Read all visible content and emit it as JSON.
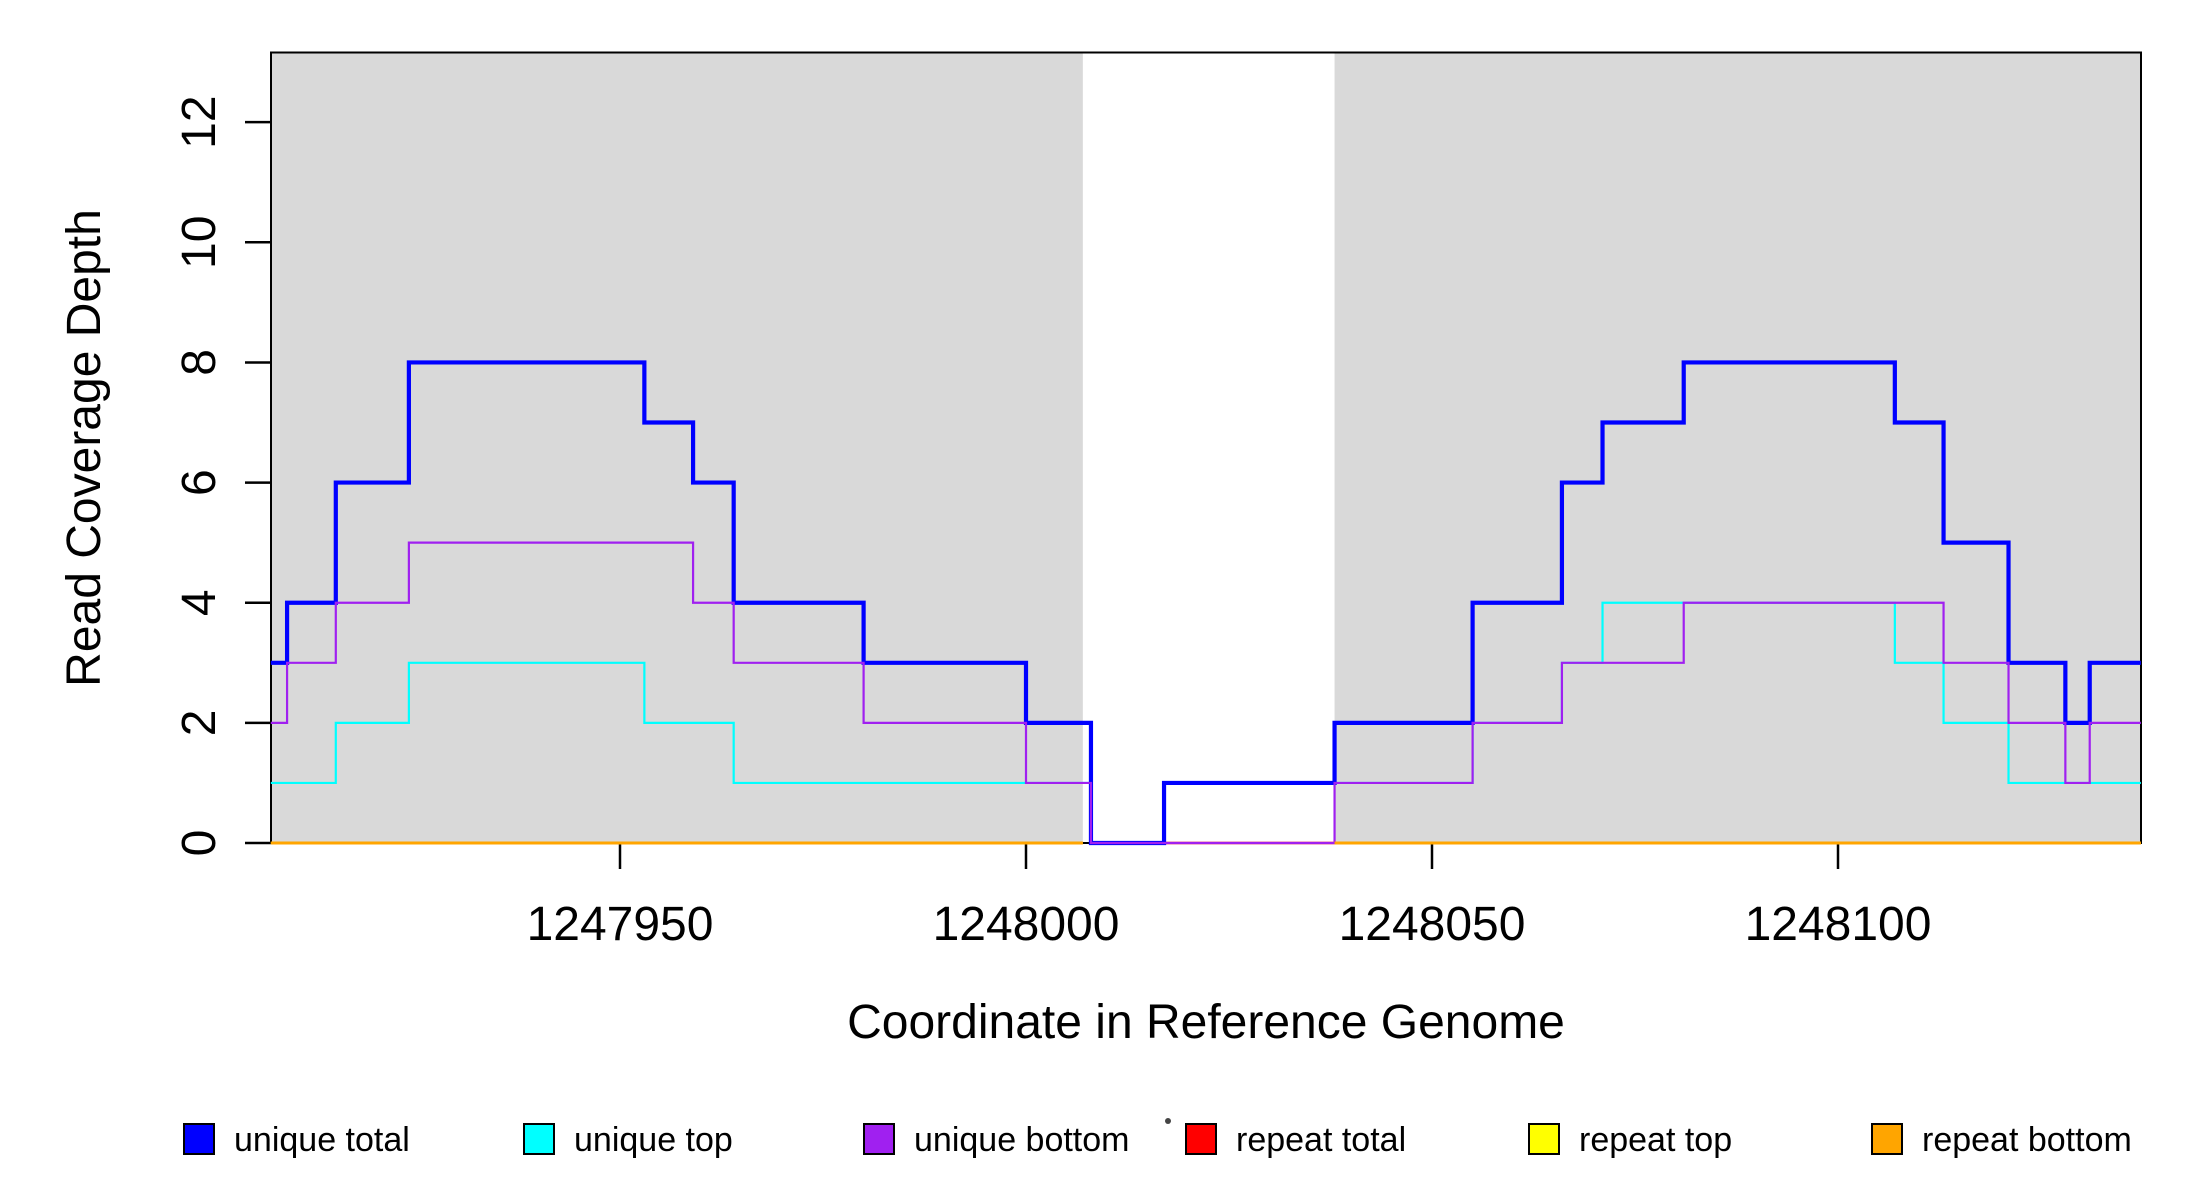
{
  "chart_data": {
    "type": "line",
    "subtype": "step",
    "title": "",
    "xlabel": "Coordinate in Reference Genome",
    "ylabel": "Read Coverage Depth",
    "x_axis": {
      "ticks": [
        1247950,
        1248000,
        1248050,
        1248100
      ],
      "range": [
        1247907,
        1248137.3
      ]
    },
    "y_axis": {
      "ticks": [
        0,
        2,
        4,
        6,
        8,
        10,
        12
      ],
      "range": [
        0,
        13.16
      ]
    },
    "grid": false,
    "shading": {
      "color": "#D9D9D9",
      "regions": [
        [
          1247907,
          1248007
        ],
        [
          1248038,
          1248137.3
        ]
      ],
      "unshaded_gap": [
        1248007,
        1248038
      ]
    },
    "series": [
      {
        "name": "unique total",
        "color": "#0000FF",
        "lw": 4.2,
        "steps": [
          [
            1247907,
            3
          ],
          [
            1247909,
            4
          ],
          [
            1247915,
            6
          ],
          [
            1247924,
            8
          ],
          [
            1247953,
            7
          ],
          [
            1247959,
            6
          ],
          [
            1247964,
            4
          ],
          [
            1247980,
            3
          ],
          [
            1248000,
            2
          ],
          [
            1248008,
            0
          ],
          [
            1248017,
            1
          ],
          [
            1248038,
            2
          ],
          [
            1248055,
            4
          ],
          [
            1248066,
            6
          ],
          [
            1248071,
            7
          ],
          [
            1248081,
            8
          ],
          [
            1248107,
            7
          ],
          [
            1248113,
            5
          ],
          [
            1248121,
            3
          ],
          [
            1248128,
            2
          ],
          [
            1248131,
            3
          ],
          [
            1248137.3,
            3
          ]
        ]
      },
      {
        "name": "unique top",
        "color": "#00FFFF",
        "lw": 2.2,
        "steps": [
          [
            1247907,
            1
          ],
          [
            1247915,
            2
          ],
          [
            1247924,
            3
          ],
          [
            1247953,
            2
          ],
          [
            1247964,
            1
          ],
          [
            1248008,
            0
          ],
          [
            1248017,
            1
          ],
          [
            1248055,
            2
          ],
          [
            1248066,
            3
          ],
          [
            1248071,
            4
          ],
          [
            1248107,
            3
          ],
          [
            1248113,
            2
          ],
          [
            1248121,
            1
          ],
          [
            1248137.3,
            1
          ]
        ]
      },
      {
        "name": "unique bottom",
        "color": "#A020F0",
        "lw": 2.2,
        "steps": [
          [
            1247907,
            2
          ],
          [
            1247909,
            3
          ],
          [
            1247915,
            4
          ],
          [
            1247924,
            5
          ],
          [
            1247959,
            4
          ],
          [
            1247964,
            3
          ],
          [
            1247980,
            2
          ],
          [
            1248000,
            1
          ],
          [
            1248008,
            0
          ],
          [
            1248038,
            1
          ],
          [
            1248055,
            2
          ],
          [
            1248066,
            3
          ],
          [
            1248081,
            4
          ],
          [
            1248113,
            3
          ],
          [
            1248121,
            2
          ],
          [
            1248128,
            1
          ],
          [
            1248131,
            2
          ],
          [
            1248137.3,
            2
          ]
        ]
      },
      {
        "name": "repeat total",
        "color": "#FF0000",
        "lw": 2.6,
        "value": 0,
        "segments": [
          [
            1248017,
            1248137.3
          ]
        ]
      },
      {
        "name": "repeat top",
        "color": "#FFFF00",
        "lw": 2.2,
        "value": 0,
        "segments": [
          [
            1247907,
            1248007
          ],
          [
            1248038,
            1248137.3
          ]
        ]
      },
      {
        "name": "repeat bottom",
        "color": "#FFA500",
        "lw": 3,
        "value": 0,
        "segments": [
          [
            1247907,
            1248007
          ],
          [
            1248038,
            1248137.3
          ]
        ]
      }
    ],
    "draw_order": [
      "repeat total",
      "repeat top",
      "unique top",
      "unique total",
      "unique bottom",
      "repeat bottom"
    ],
    "legend": {
      "position": "bottom",
      "entries": [
        {
          "label": "unique total",
          "color": "#0000FF"
        },
        {
          "label": "unique top",
          "color": "#00FFFF"
        },
        {
          "label": "unique bottom",
          "color": "#A020F0"
        },
        {
          "label": "repeat total",
          "color": "#FF0000"
        },
        {
          "label": "repeat top",
          "color": "#FFFF00"
        },
        {
          "label": "repeat bottom",
          "color": "#FFA500"
        }
      ]
    }
  }
}
